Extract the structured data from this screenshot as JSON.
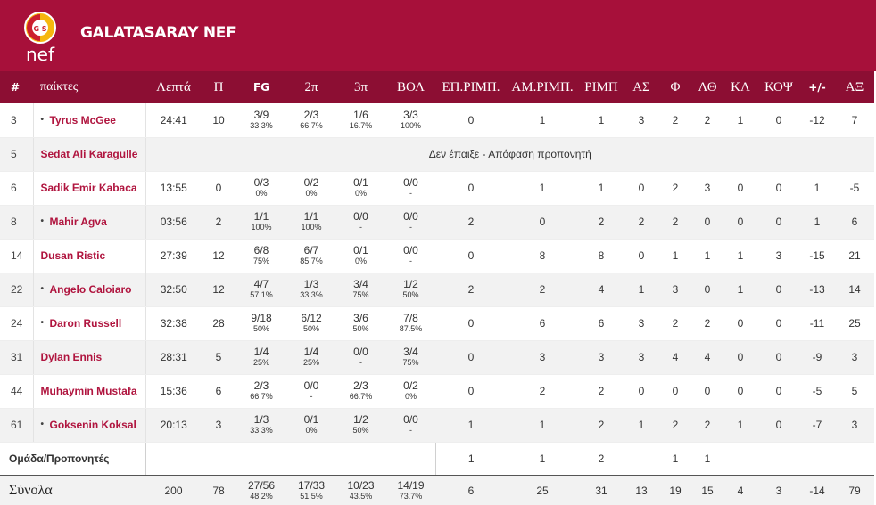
{
  "team": {
    "name": "GALATASARAY NEF",
    "logo_text": "nef",
    "colors": {
      "primary": "#a7103a",
      "header_row": "#8c0e33",
      "player_name": "#b0153f",
      "logo_red": "#cc1f2f",
      "logo_yellow": "#f6b70e"
    }
  },
  "columns": [
    "#",
    "παίκτες",
    "Λεπτά",
    "Π",
    "FG",
    "2π",
    "3π",
    "ΒΟΛ",
    "ΕΠ.ΡΙΜΠ.",
    "ΑΜ.ΡΙΜΠ.",
    "ΡΙΜΠ",
    "ΑΣ",
    "Φ",
    "ΛΘ",
    "ΚΛ",
    "ΚΟΨ",
    "+/-",
    "ΑΞ"
  ],
  "starter_marker": "•",
  "players": [
    {
      "num": "3",
      "name": "Tyrus McGee",
      "starter": true,
      "min": "24:41",
      "pts": "10",
      "fg": "3/9",
      "fg_pct": "33.3%",
      "p2": "2/3",
      "p2_pct": "66.7%",
      "p3": "1/6",
      "p3_pct": "16.7%",
      "ft": "3/3",
      "ft_pct": "100%",
      "oreb": "0",
      "dreb": "1",
      "reb": "1",
      "ast": "3",
      "fouls": "2",
      "to": "2",
      "stl": "1",
      "blk": "0",
      "pm": "-12",
      "eff": "7"
    },
    {
      "num": "5",
      "name": "Sedat Ali Karagulle",
      "starter": false,
      "dnp": "Δεν έπαιξε - Απόφαση προπονητή"
    },
    {
      "num": "6",
      "name": "Sadik Emir Kabaca",
      "starter": false,
      "min": "13:55",
      "pts": "0",
      "fg": "0/3",
      "fg_pct": "0%",
      "p2": "0/2",
      "p2_pct": "0%",
      "p3": "0/1",
      "p3_pct": "0%",
      "ft": "0/0",
      "ft_pct": "-",
      "oreb": "0",
      "dreb": "1",
      "reb": "1",
      "ast": "0",
      "fouls": "2",
      "to": "3",
      "stl": "0",
      "blk": "0",
      "pm": "1",
      "eff": "-5"
    },
    {
      "num": "8",
      "name": "Mahir Agva",
      "starter": true,
      "min": "03:56",
      "pts": "2",
      "fg": "1/1",
      "fg_pct": "100%",
      "p2": "1/1",
      "p2_pct": "100%",
      "p3": "0/0",
      "p3_pct": "-",
      "ft": "0/0",
      "ft_pct": "-",
      "oreb": "2",
      "dreb": "0",
      "reb": "2",
      "ast": "2",
      "fouls": "2",
      "to": "0",
      "stl": "0",
      "blk": "0",
      "pm": "1",
      "eff": "6"
    },
    {
      "num": "14",
      "name": "Dusan Ristic",
      "starter": false,
      "min": "27:39",
      "pts": "12",
      "fg": "6/8",
      "fg_pct": "75%",
      "p2": "6/7",
      "p2_pct": "85.7%",
      "p3": "0/1",
      "p3_pct": "0%",
      "ft": "0/0",
      "ft_pct": "-",
      "oreb": "0",
      "dreb": "8",
      "reb": "8",
      "ast": "0",
      "fouls": "1",
      "to": "1",
      "stl": "1",
      "blk": "3",
      "pm": "-15",
      "eff": "21"
    },
    {
      "num": "22",
      "name": "Angelo Caloiaro",
      "starter": true,
      "min": "32:50",
      "pts": "12",
      "fg": "4/7",
      "fg_pct": "57.1%",
      "p2": "1/3",
      "p2_pct": "33.3%",
      "p3": "3/4",
      "p3_pct": "75%",
      "ft": "1/2",
      "ft_pct": "50%",
      "oreb": "2",
      "dreb": "2",
      "reb": "4",
      "ast": "1",
      "fouls": "3",
      "to": "0",
      "stl": "1",
      "blk": "0",
      "pm": "-13",
      "eff": "14"
    },
    {
      "num": "24",
      "name": "Daron Russell",
      "starter": true,
      "min": "32:38",
      "pts": "28",
      "fg": "9/18",
      "fg_pct": "50%",
      "p2": "6/12",
      "p2_pct": "50%",
      "p3": "3/6",
      "p3_pct": "50%",
      "ft": "7/8",
      "ft_pct": "87.5%",
      "oreb": "0",
      "dreb": "6",
      "reb": "6",
      "ast": "3",
      "fouls": "2",
      "to": "2",
      "stl": "0",
      "blk": "0",
      "pm": "-11",
      "eff": "25"
    },
    {
      "num": "31",
      "name": "Dylan Ennis",
      "starter": false,
      "min": "28:31",
      "pts": "5",
      "fg": "1/4",
      "fg_pct": "25%",
      "p2": "1/4",
      "p2_pct": "25%",
      "p3": "0/0",
      "p3_pct": "-",
      "ft": "3/4",
      "ft_pct": "75%",
      "oreb": "0",
      "dreb": "3",
      "reb": "3",
      "ast": "3",
      "fouls": "4",
      "to": "4",
      "stl": "0",
      "blk": "0",
      "pm": "-9",
      "eff": "3"
    },
    {
      "num": "44",
      "name": "Muhaymin Mustafa",
      "starter": false,
      "min": "15:36",
      "pts": "6",
      "fg": "2/3",
      "fg_pct": "66.7%",
      "p2": "0/0",
      "p2_pct": "-",
      "p3": "2/3",
      "p3_pct": "66.7%",
      "ft": "0/2",
      "ft_pct": "0%",
      "oreb": "0",
      "dreb": "2",
      "reb": "2",
      "ast": "0",
      "fouls": "0",
      "to": "0",
      "stl": "0",
      "blk": "0",
      "pm": "-5",
      "eff": "5"
    },
    {
      "num": "61",
      "name": "Goksenin Koksal",
      "starter": true,
      "min": "20:13",
      "pts": "3",
      "fg": "1/3",
      "fg_pct": "33.3%",
      "p2": "0/1",
      "p2_pct": "0%",
      "p3": "1/2",
      "p3_pct": "50%",
      "ft": "0/0",
      "ft_pct": "-",
      "oreb": "1",
      "dreb": "1",
      "reb": "2",
      "ast": "1",
      "fouls": "2",
      "to": "2",
      "stl": "1",
      "blk": "0",
      "pm": "-7",
      "eff": "3"
    }
  ],
  "team_row": {
    "label": "Ομάδα/Προπονητές",
    "oreb": "1",
    "dreb": "1",
    "reb": "2",
    "fouls": "1",
    "to": "1"
  },
  "totals": {
    "label": "Σύνολα",
    "min": "200",
    "pts": "78",
    "fg": "27/56",
    "fg_pct": "48.2%",
    "p2": "17/33",
    "p2_pct": "51.5%",
    "p3": "10/23",
    "p3_pct": "43.5%",
    "ft": "14/19",
    "ft_pct": "73.7%",
    "oreb": "6",
    "dreb": "25",
    "reb": "31",
    "ast": "13",
    "fouls": "19",
    "to": "15",
    "stl": "4",
    "blk": "3",
    "pm": "-14",
    "eff": "79"
  }
}
